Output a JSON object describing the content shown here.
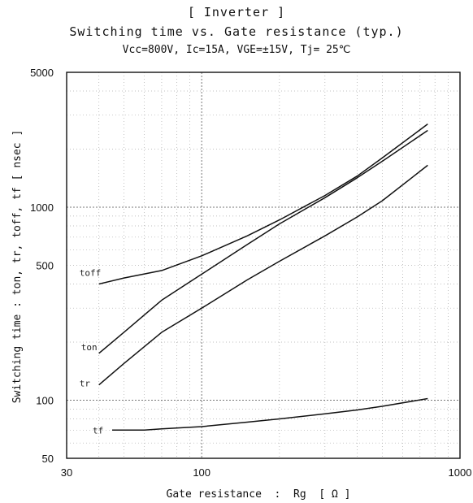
{
  "chart_data": {
    "type": "line",
    "title": "[ Inverter ]",
    "subtitle": "Switching time vs. Gate resistance (typ.)",
    "conditions": "Vcc=800V, Ic=15A, VGE=±15V, Tj= 25℃",
    "xlabel": "Gate resistance  :  Rg  [ Ω ]",
    "ylabel": "Switching time : ton, tr, toff, tf [ nsec ]",
    "xscale": "log",
    "yscale": "log",
    "xlim": [
      30,
      1000
    ],
    "ylim": [
      50,
      5000
    ],
    "x_ticks": [
      "30",
      "100",
      "1000"
    ],
    "y_ticks": [
      "50",
      "100",
      "500",
      "1000",
      "5000"
    ],
    "grid": true,
    "series": [
      {
        "name": "toff",
        "x": [
          40,
          50,
          70,
          100,
          150,
          200,
          300,
          400,
          500,
          750
        ],
        "y": [
          400,
          430,
          470,
          560,
          710,
          860,
          1150,
          1450,
          1800,
          2700
        ]
      },
      {
        "name": "ton",
        "x": [
          40,
          50,
          70,
          100,
          150,
          200,
          300,
          400,
          500,
          750
        ],
        "y": [
          175,
          225,
          330,
          450,
          640,
          820,
          1120,
          1420,
          1730,
          2500
        ]
      },
      {
        "name": "tr",
        "x": [
          40,
          50,
          70,
          100,
          150,
          200,
          300,
          400,
          500,
          750
        ],
        "y": [
          120,
          155,
          225,
          300,
          420,
          525,
          710,
          890,
          1080,
          1650
        ]
      },
      {
        "name": "tf",
        "x": [
          45,
          60,
          70,
          100,
          150,
          200,
          300,
          400,
          500,
          750
        ],
        "y": [
          70,
          70,
          71,
          73,
          77,
          80,
          85,
          89,
          93,
          102
        ]
      }
    ]
  }
}
